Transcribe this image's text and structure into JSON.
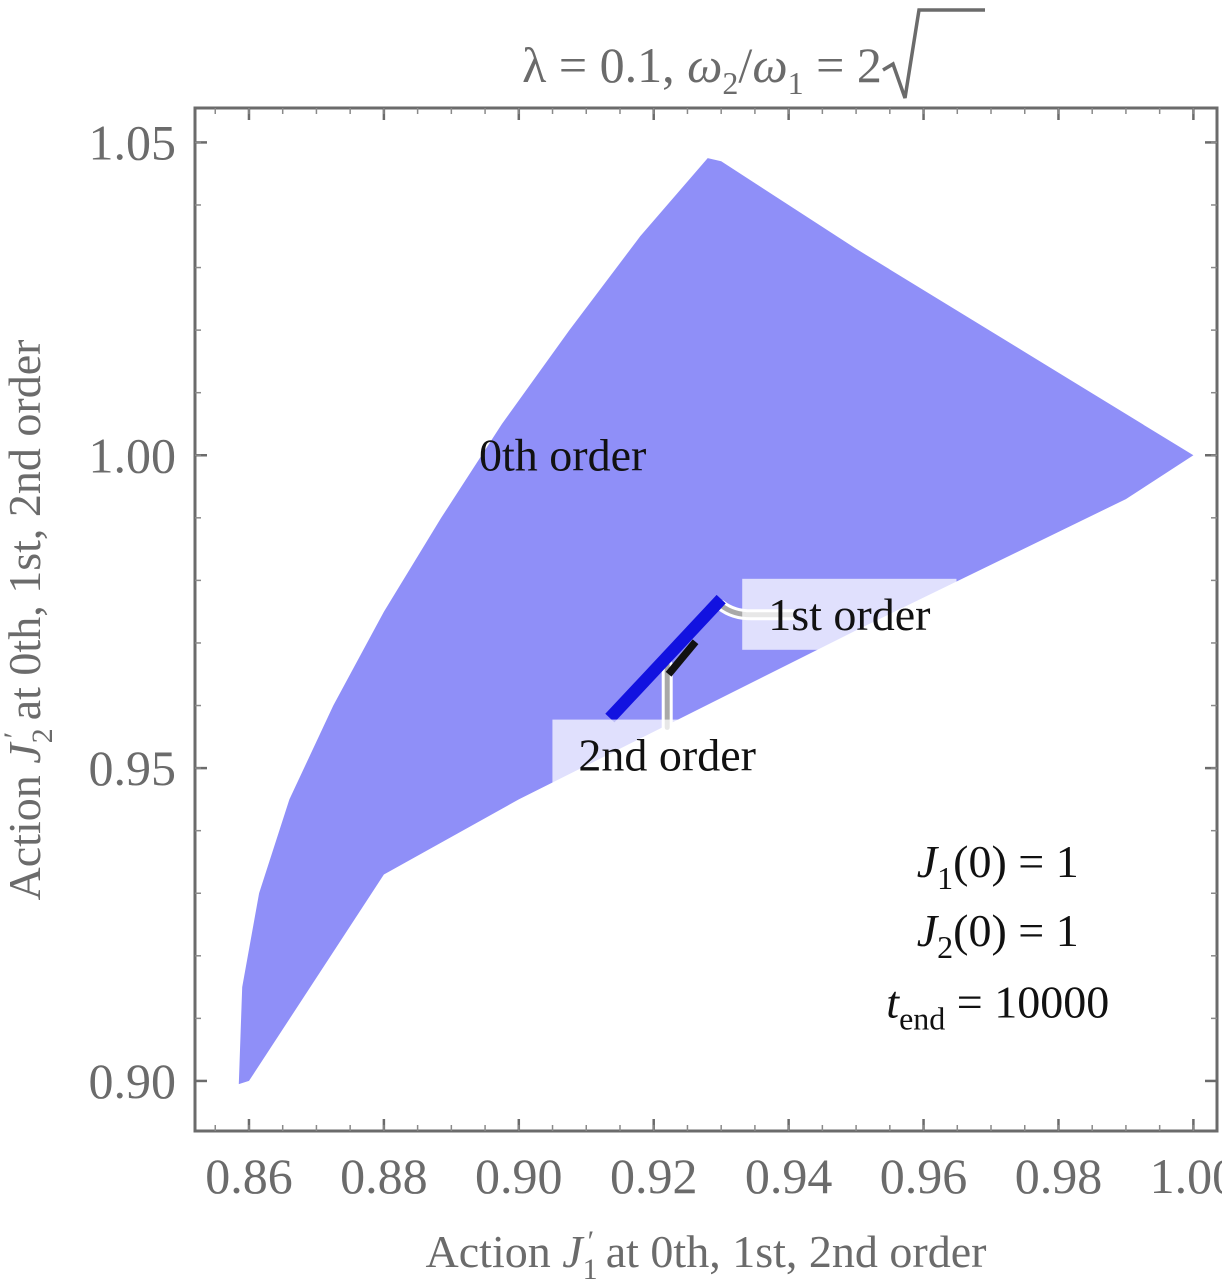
{
  "chart_data": {
    "type": "area",
    "title": "λ = 0.1, ω2/ω1 = √2",
    "title_parts": {
      "lambda": "λ = 0.1, ",
      "omega2": "ω",
      "sub2": "2",
      "slash": "/",
      "omega1": "ω",
      "sub1": "1",
      "eq": " = ",
      "sqrt_val": "2"
    },
    "xlabel": "Action J1′ at 0th, 1st, 2nd order",
    "xlabel_parts": {
      "pre": "Action ",
      "var": "J",
      "sub": "1",
      "prime": "′",
      "post": "  at 0th, 1st, 2nd order"
    },
    "ylabel": "Action J2′ at 0th, 1st, 2nd order",
    "ylabel_parts": {
      "pre": "Action ",
      "var": "J",
      "sub": "2",
      "prime": "′",
      "post": "  at 0th, 1st, 2nd order"
    },
    "xlim": [
      0.852,
      1.0035
    ],
    "ylim": [
      0.892,
      1.0555
    ],
    "xticks": [
      "0.86",
      "0.88",
      "0.90",
      "0.92",
      "0.94",
      "0.96",
      "0.98",
      "1.00"
    ],
    "yticks": [
      "0.90",
      "0.95",
      "1.00",
      "1.05"
    ],
    "grid": false,
    "frame_color": "#6b6b6b",
    "series": [
      {
        "name": "0th order",
        "color": "#8f8ff8",
        "boundary": [
          [
            0.8585,
            0.8995
          ],
          [
            0.859,
            0.915
          ],
          [
            0.8615,
            0.93
          ],
          [
            0.866,
            0.945
          ],
          [
            0.8725,
            0.96
          ],
          [
            0.88,
            0.975
          ],
          [
            0.8885,
            0.99
          ],
          [
            0.8975,
            1.005
          ],
          [
            0.9075,
            1.02
          ],
          [
            0.918,
            1.035
          ],
          [
            0.928,
            1.0475
          ],
          [
            0.93,
            1.047
          ],
          [
            0.95,
            1.033
          ],
          [
            0.975,
            1.0165
          ],
          [
            1.0,
            1.0
          ],
          [
            0.99,
            0.993
          ],
          [
            0.95,
            0.972
          ],
          [
            0.9,
            0.945
          ],
          [
            0.88,
            0.933
          ],
          [
            0.86,
            0.9
          ]
        ]
      },
      {
        "name": "1st order",
        "color": "#1212e0",
        "segment": [
          [
            0.9135,
            0.958
          ],
          [
            0.93,
            0.977
          ]
        ],
        "width": 0.00185
      },
      {
        "name": "2nd order",
        "color": "#111111",
        "segment": [
          [
            0.9222,
            0.965
          ],
          [
            0.9262,
            0.9702
          ]
        ],
        "width": 0.0011
      }
    ],
    "labels": [
      {
        "text": "0th order",
        "at": [
          0.9065,
          1.0
        ]
      },
      {
        "text": "1st order",
        "at": [
          0.949,
          0.9745
        ],
        "leader_from": [
          0.93,
          0.976
        ],
        "leader_to": [
          0.9405,
          0.9745
        ]
      },
      {
        "text": "2nd order",
        "at": [
          0.922,
          0.952
        ],
        "leader_from": [
          0.922,
          0.9665
        ],
        "leader_to": [
          0.922,
          0.9565
        ]
      }
    ],
    "annotation": {
      "lines": [
        {
          "var": "J",
          "sub": "1",
          "rest": "(0) = 1"
        },
        {
          "var": "J",
          "sub": "2",
          "rest": "(0) = 1"
        },
        {
          "var": "t",
          "sub": "end",
          "rest": " = 10000"
        }
      ],
      "at_x": 0.971,
      "at_y": [
        0.935,
        0.924,
        0.9125
      ]
    }
  }
}
